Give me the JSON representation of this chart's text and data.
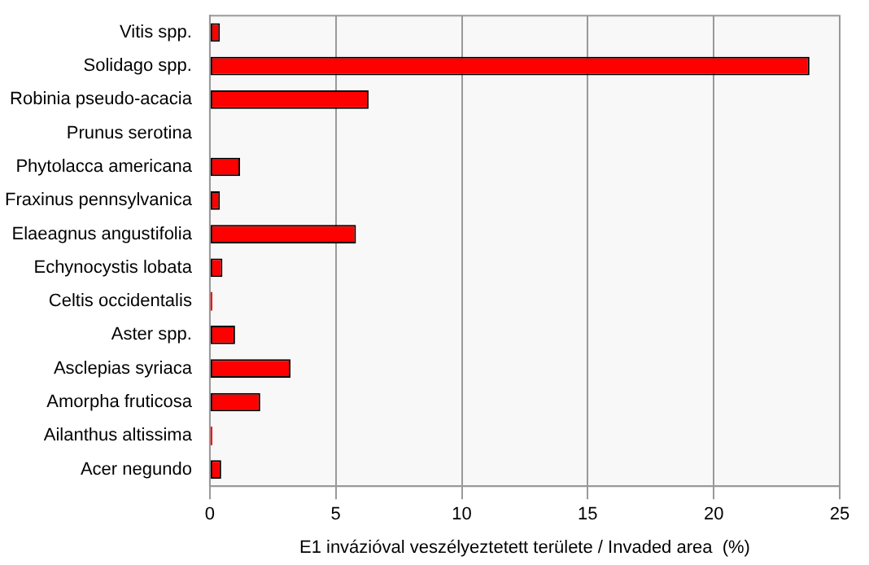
{
  "chart_data": {
    "type": "bar",
    "orientation": "horizontal",
    "xlabel": "E1 invázióval veszélyeztetett területe / Invaded area  (%)",
    "categories": [
      "Vitis spp.",
      "Solidago spp.",
      "Robinia pseudo-acacia",
      "Prunus serotina",
      "Phytolacca americana",
      "Fraxinus pennsylvanica",
      "Elaeagnus angustifolia",
      "Echynocystis lobata",
      "Celtis occidentalis",
      "Aster spp.",
      "Asclepias syriaca",
      "Amorpha fruticosa",
      "Ailanthus altissima",
      "Acer negundo"
    ],
    "values": [
      0.4,
      23.8,
      6.3,
      0,
      1.2,
      0.4,
      5.8,
      0.5,
      0.1,
      1.0,
      3.2,
      2.0,
      0.1,
      0.45
    ],
    "color": "#ff0000",
    "xlim": [
      0,
      25
    ],
    "xticks": [
      0,
      5,
      10,
      15,
      20,
      25
    ],
    "grid": "x"
  }
}
